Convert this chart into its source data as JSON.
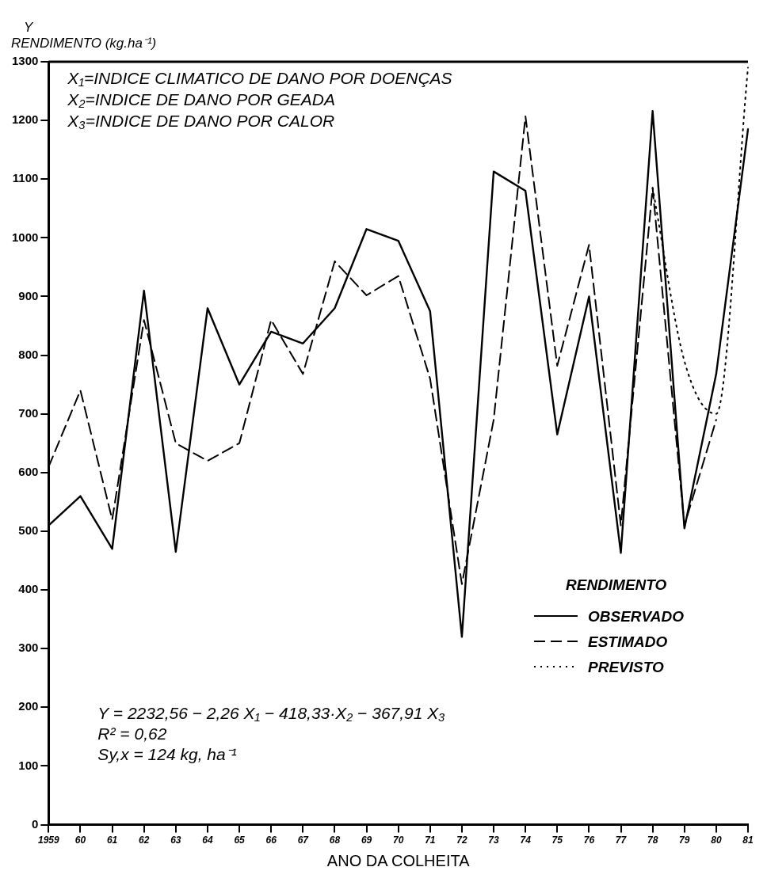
{
  "chart_data": {
    "type": "line",
    "ylabel": "RENDIMENTO (kg.ha⁻¹)",
    "xlabel": "ANO DA COLHEITA",
    "legend_title": "RENDIMENTO",
    "legend": "bottom right",
    "grid": false,
    "marker": "none",
    "categories": [
      "1959",
      "60",
      "61",
      "62",
      "63",
      "64",
      "65",
      "66",
      "67",
      "68",
      "69",
      "70",
      "71",
      "72",
      "73",
      "74",
      "75",
      "76",
      "77",
      "78",
      "79",
      "80",
      "81"
    ],
    "ylim": [
      0,
      1300
    ],
    "yticks": [
      0,
      100,
      200,
      300,
      400,
      500,
      600,
      700,
      800,
      900,
      1000,
      1100,
      1200,
      1300
    ],
    "series": [
      {
        "name": "OBSERVADO",
        "color": "#000000",
        "line_style": "solid",
        "values": [
          510,
          560,
          470,
          910,
          465,
          880,
          750,
          840,
          820,
          880,
          1015,
          995,
          875,
          320,
          1113,
          1080,
          665,
          900,
          463,
          1216,
          505,
          768,
          1185
        ]
      },
      {
        "name": "ESTIMADO",
        "color": "#000000",
        "line_style": "dashed",
        "values": [
          610,
          740,
          520,
          860,
          650,
          620,
          650,
          860,
          768,
          960,
          902,
          935,
          760,
          410,
          690,
          1207,
          782,
          988,
          510,
          1085,
          510,
          690,
          null
        ]
      },
      {
        "name": "PREVISTO",
        "color": "#000000",
        "line_style": "dotted",
        "values": [
          null,
          null,
          null,
          null,
          null,
          null,
          null,
          null,
          null,
          null,
          null,
          null,
          null,
          null,
          null,
          null,
          null,
          null,
          null,
          1085,
          790,
          700,
          1290
        ]
      }
    ],
    "annotations": [
      "Y",
      "X₁=INDICE CLIMATICO DE DANO POR DOENÇAS",
      "X₂=INDICE DE DANO POR GEADA",
      "X₃=INDICE DE DANO POR CALOR",
      "Y = 2232,56 − 2,26 X₁ − 418,33·X₂ − 367,91 X₃",
      "R² = 0,62",
      "Sy,x = 124 kg, ha⁻¹"
    ]
  }
}
